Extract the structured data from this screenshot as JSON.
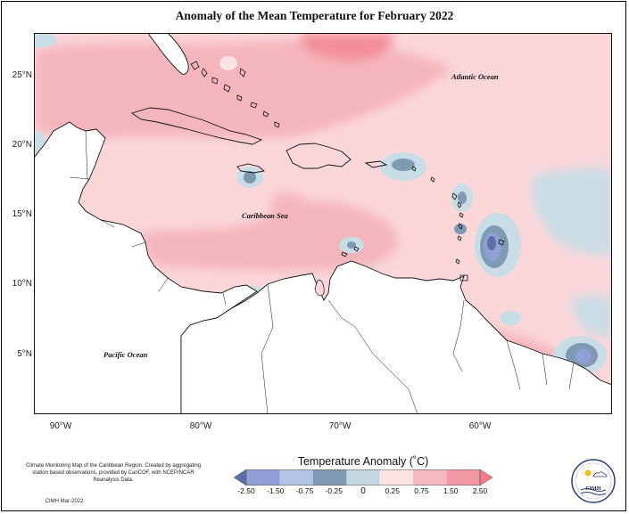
{
  "title": "Anomaly of the Mean Temperature for February 2022",
  "map": {
    "lat_ticks": [
      "25°N",
      "20°N",
      "15°N",
      "10°N",
      "5°N"
    ],
    "lon_ticks": [
      "90°W",
      "80°W",
      "70°W",
      "60°W"
    ],
    "labels": {
      "atlantic": "Atlantic Ocean",
      "caribbean": "Caribbean Sea",
      "pacific": "Pacific Ocean"
    }
  },
  "legend": {
    "title": "Temperature Anomaly (˚C)",
    "ticks": [
      "-2.50",
      "-1.50",
      "-0.75",
      "-0.25",
      "0",
      "0.25",
      "0.75",
      "1.50",
      "2.50"
    ],
    "colors": [
      "#5d6fa8",
      "#8fa0d6",
      "#b2c4e6",
      "#7f9bb3",
      "#c2d7e0",
      "#fde4e4",
      "#f4b9bf",
      "#f29aa3",
      "#f67b86"
    ]
  },
  "credits": {
    "text": "Climate Monitoring Map of the Caribbean Region. Created by aggregating station based observations, provided by CariCOF, with NCEP/NCAR Reanalysis Data.",
    "date": "CIMH Mar-2022"
  },
  "logo": {
    "text": "CIMH"
  }
}
